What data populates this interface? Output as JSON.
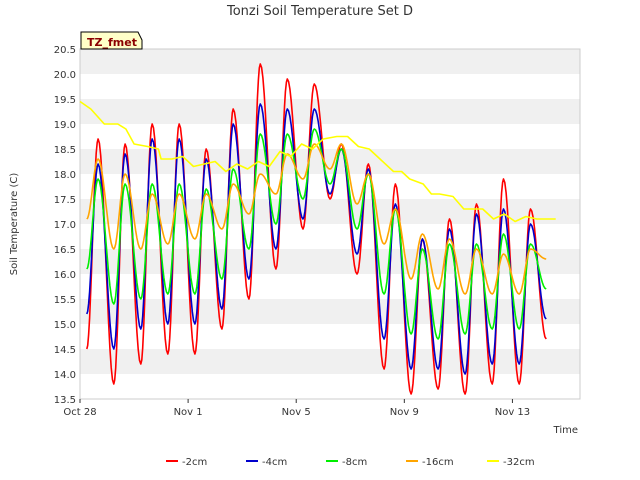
{
  "chart_data": {
    "type": "line",
    "title": "Tonzi Soil Temperature Set D",
    "xlabel": "Time",
    "ylabel": "Soil Temperature (C)",
    "tag": "TZ_fmet",
    "grid": "horizontal bands",
    "legend_position": "bottom-center",
    "xlim": [
      "2014-10-28",
      "2014-11-15T12:00"
    ],
    "ylim": [
      13.5,
      20.5
    ],
    "x_ticks": [
      {
        "label": "Oct 28",
        "day": 0
      },
      {
        "label": "Nov 1",
        "day": 4
      },
      {
        "label": "Nov 5",
        "day": 8
      },
      {
        "label": "Nov 9",
        "day": 12
      },
      {
        "label": "Nov 13",
        "day": 16
      }
    ],
    "y_ticks": [
      "13.5",
      "14.0",
      "14.5",
      "15.0",
      "15.5",
      "16.0",
      "16.5",
      "17.0",
      "17.5",
      "18.0",
      "18.5",
      "19.0",
      "19.5",
      "20.0",
      "20.5"
    ],
    "series": [
      {
        "name": "-2cm",
        "color": "#ff0000",
        "troughs": [
          14.5,
          13.8,
          14.2,
          14.4,
          14.4,
          14.9,
          15.5,
          16.1,
          16.9,
          17.5,
          16.0,
          14.1,
          13.6,
          13.7,
          13.6,
          13.8,
          13.8,
          14.7
        ],
        "peaks": [
          18.7,
          18.6,
          19.0,
          19.0,
          18.5,
          19.3,
          20.2,
          19.9,
          19.8,
          18.6,
          18.2,
          17.8,
          16.7,
          17.1,
          17.4,
          17.9,
          17.3
        ]
      },
      {
        "name": "-4cm",
        "color": "#0000cc",
        "troughs": [
          15.2,
          14.5,
          14.9,
          15.0,
          15.0,
          15.3,
          15.9,
          16.5,
          17.1,
          17.6,
          16.4,
          14.7,
          14.1,
          14.1,
          14.0,
          14.2,
          14.2,
          15.1
        ],
        "peaks": [
          18.2,
          18.4,
          18.7,
          18.7,
          18.3,
          19.0,
          19.4,
          19.3,
          19.3,
          18.5,
          18.1,
          17.4,
          16.7,
          16.9,
          17.2,
          17.3,
          17.0
        ]
      },
      {
        "name": "-8cm",
        "color": "#00ee00",
        "troughs": [
          16.1,
          15.4,
          15.5,
          15.6,
          15.6,
          15.9,
          16.5,
          17.0,
          17.5,
          17.8,
          16.9,
          15.6,
          14.8,
          14.7,
          14.8,
          14.9,
          14.9,
          15.7
        ],
        "peaks": [
          17.9,
          17.8,
          17.8,
          17.8,
          17.7,
          18.1,
          18.8,
          18.8,
          18.9,
          18.5,
          18.0,
          17.3,
          16.5,
          16.6,
          16.6,
          16.8,
          16.6
        ]
      },
      {
        "name": "-16cm",
        "color": "#ffa500",
        "troughs": [
          17.1,
          16.5,
          16.5,
          16.6,
          16.7,
          16.9,
          17.2,
          17.6,
          17.9,
          18.1,
          17.4,
          16.6,
          15.9,
          15.7,
          15.6,
          15.6,
          15.6,
          16.3
        ],
        "peaks": [
          18.3,
          18.0,
          17.6,
          17.6,
          17.6,
          17.8,
          18.0,
          18.4,
          18.6,
          18.6,
          18.0,
          17.3,
          16.8,
          16.7,
          16.5,
          16.4,
          16.5
        ]
      },
      {
        "name": "-32cm",
        "color": "#ffff00",
        "x": [
          0,
          0.4,
          0.9,
          1.4,
          1.7,
          2.0,
          2.5,
          2.9,
          3.0,
          3.4,
          3.8,
          4.2,
          4.6,
          5.0,
          5.4,
          5.8,
          6.2,
          6.6,
          7.0,
          7.4,
          7.8,
          8.2,
          8.6,
          9.0,
          9.5,
          9.9,
          10.3,
          10.7,
          11.1,
          11.6,
          11.9,
          12.2,
          12.7,
          13.0,
          13.3,
          13.8,
          14.2,
          14.5,
          14.9,
          15.3,
          15.7,
          16.1,
          16.5,
          16.9,
          17.3,
          17.6
        ],
        "y": [
          19.45,
          19.3,
          19.0,
          19.0,
          18.9,
          18.6,
          18.55,
          18.5,
          18.3,
          18.3,
          18.35,
          18.15,
          18.2,
          18.25,
          18.05,
          18.2,
          18.1,
          18.25,
          18.15,
          18.45,
          18.35,
          18.6,
          18.5,
          18.7,
          18.75,
          18.75,
          18.55,
          18.5,
          18.3,
          18.05,
          18.05,
          17.9,
          17.8,
          17.6,
          17.6,
          17.55,
          17.3,
          17.3,
          17.3,
          17.1,
          17.2,
          17.05,
          17.15,
          17.1,
          17.1,
          17.1
        ]
      }
    ]
  }
}
